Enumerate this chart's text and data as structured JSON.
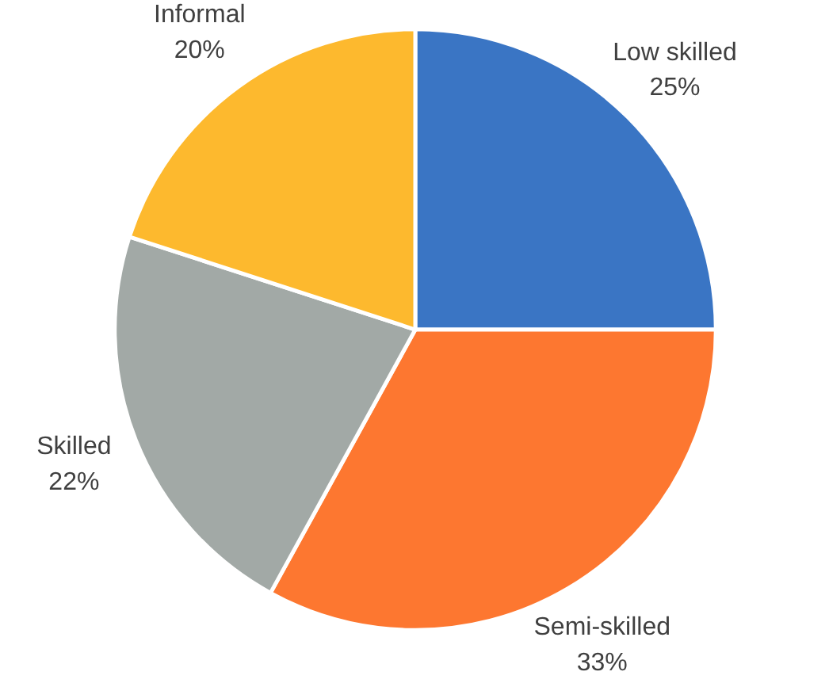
{
  "chart_data": {
    "type": "pie",
    "categories": [
      "Low skilled",
      "Semi-skilled",
      "Skilled",
      "Informal"
    ],
    "values": [
      25,
      33,
      22,
      20
    ],
    "value_labels": [
      "25%",
      "33%",
      "22%",
      "20%"
    ],
    "colors": [
      "#3a75c4",
      "#fd7730",
      "#a2a9a6",
      "#fdb92e"
    ],
    "legend": false
  }
}
